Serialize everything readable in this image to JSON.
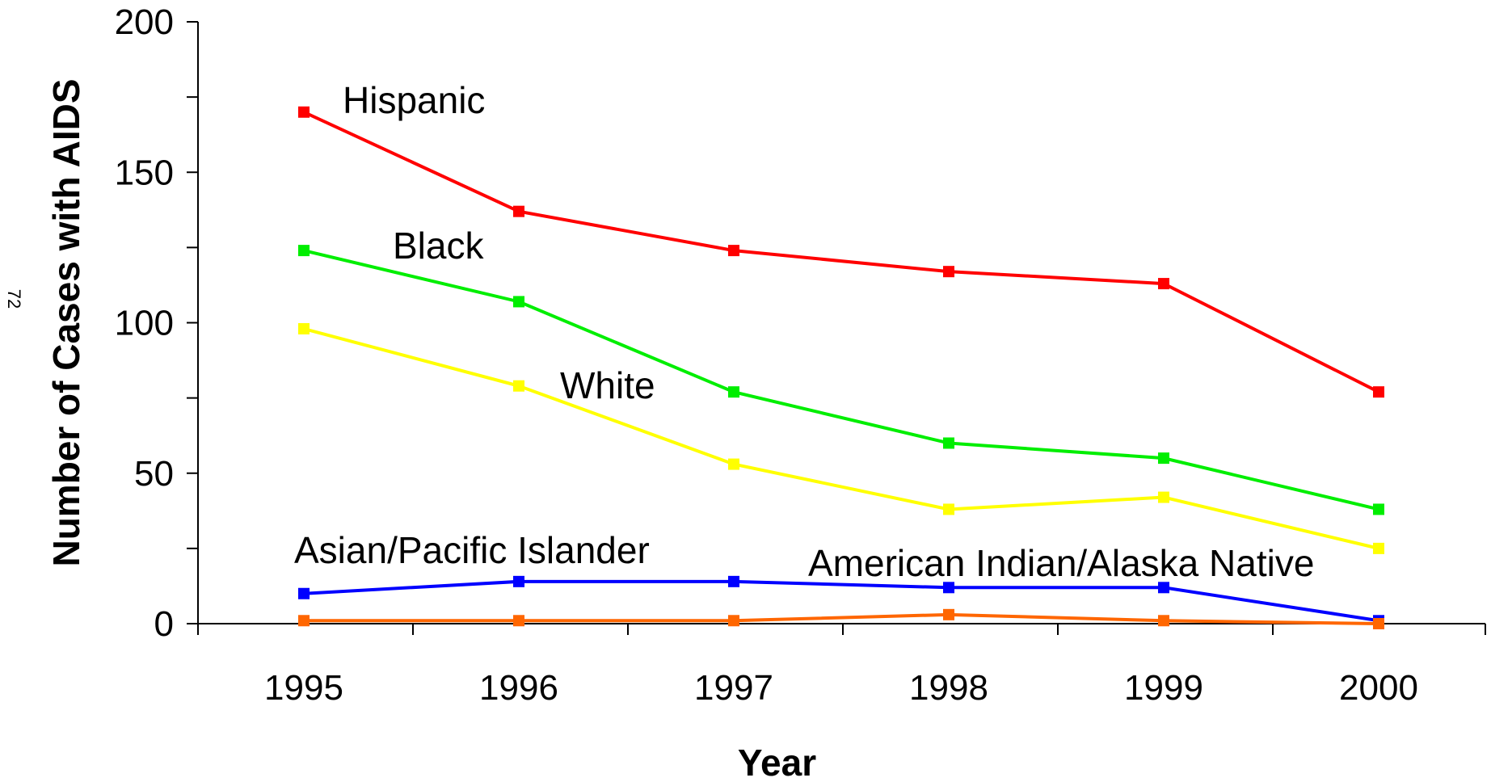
{
  "page_number": "72",
  "chart_data": {
    "type": "line",
    "xlabel": "Year",
    "ylabel": "Number of Cases with AIDS",
    "x": [
      1995,
      1996,
      1997,
      1998,
      1999,
      2000
    ],
    "x_tick_labels": [
      "1995",
      "1996",
      "1997",
      "1998",
      "1999",
      "2000"
    ],
    "ylim": [
      0,
      200
    ],
    "y_major_ticks": [
      0,
      50,
      100,
      150,
      200
    ],
    "y_tick_labels": [
      "0",
      "50",
      "100",
      "150",
      "200"
    ],
    "grid": false,
    "legend": "none (series labeled directly on chart)",
    "series": [
      {
        "name": "Hispanic",
        "color": "#ff0000",
        "values": [
          170,
          137,
          124,
          117,
          113,
          77
        ]
      },
      {
        "name": "Black",
        "color": "#00ee00",
        "values": [
          124,
          107,
          77,
          60,
          55,
          38
        ]
      },
      {
        "name": "White",
        "color": "#ffff00",
        "values": [
          98,
          79,
          53,
          38,
          42,
          25
        ]
      },
      {
        "name": "Asian/Pacific Islander",
        "color": "#0000ff",
        "values": [
          10,
          14,
          14,
          12,
          12,
          1
        ]
      },
      {
        "name": "American Indian/Alaska Native",
        "color": "#ff6600",
        "values": [
          1,
          1,
          1,
          3,
          1,
          0
        ]
      }
    ]
  }
}
